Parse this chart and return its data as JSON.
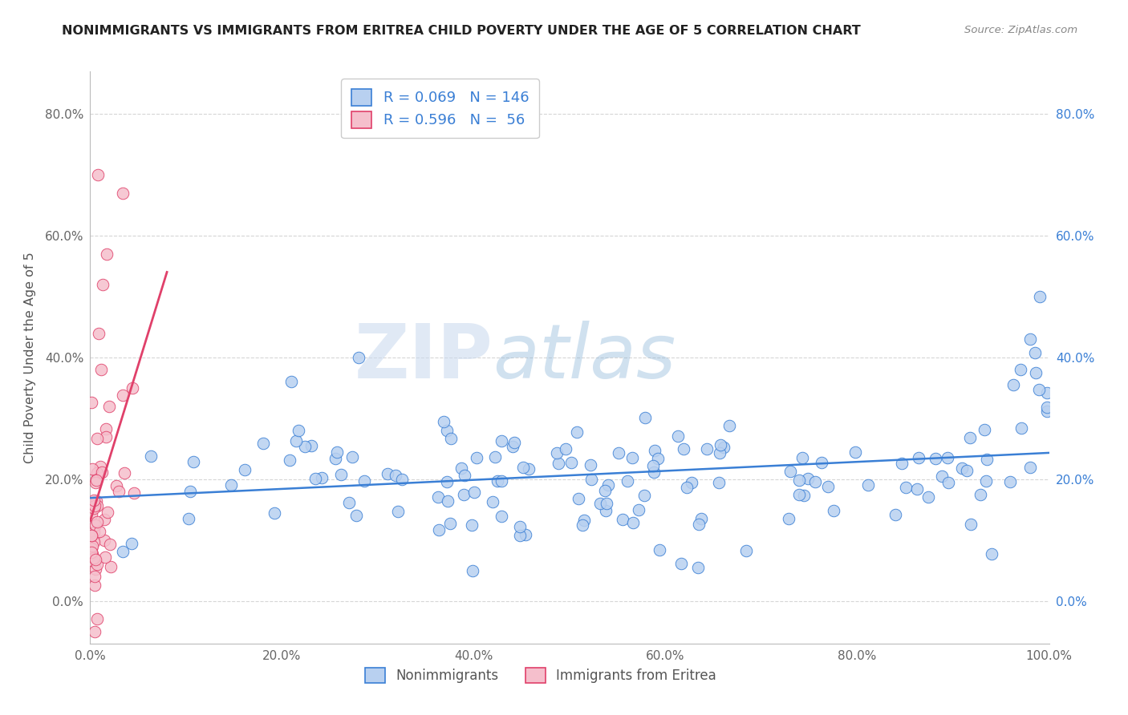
{
  "title": "NONIMMIGRANTS VS IMMIGRANTS FROM ERITREA CHILD POVERTY UNDER THE AGE OF 5 CORRELATION CHART",
  "source": "Source: ZipAtlas.com",
  "ylabel": "Child Poverty Under the Age of 5",
  "xlim": [
    0,
    1.0
  ],
  "ylim": [
    -0.07,
    0.87
  ],
  "yticks": [
    0.0,
    0.2,
    0.4,
    0.6,
    0.8
  ],
  "ytick_labels": [
    "0.0%",
    "20.0%",
    "40.0%",
    "60.0%",
    "80.0%"
  ],
  "xticks": [
    0.0,
    0.2,
    0.4,
    0.6,
    0.8,
    1.0
  ],
  "xtick_labels": [
    "0.0%",
    "20.0%",
    "40.0%",
    "60.0%",
    "80.0%",
    "100.0%"
  ],
  "blue_R": 0.069,
  "blue_N": 146,
  "pink_R": 0.596,
  "pink_N": 56,
  "blue_color": "#b8d0f0",
  "pink_color": "#f5bfcc",
  "blue_line_color": "#3a7fd5",
  "pink_line_color": "#e0406a",
  "background_color": "#ffffff",
  "grid_color": "#cccccc",
  "watermark_zip": "ZIP",
  "watermark_atlas": "atlas",
  "legend_blue_label": "Nonimmigrants",
  "legend_pink_label": "Immigrants from Eritrea"
}
